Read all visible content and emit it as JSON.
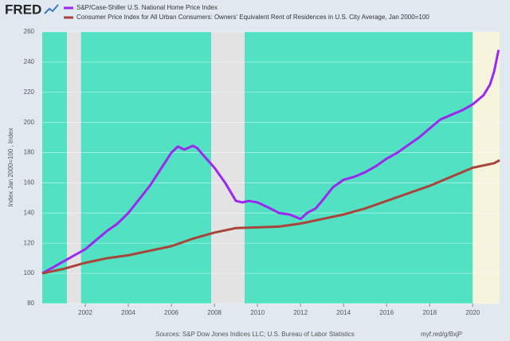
{
  "logo": "FRED",
  "chart_data": {
    "type": "line",
    "y_label": "Index Jan 2000=100 , Index",
    "source": "Sources: S&P Dow Jones Indices LLC; U.S. Bureau of Labor Statistics",
    "url": "myf.red/g/BxjP",
    "xlim": [
      2000,
      2021.25
    ],
    "xticks": [
      2002,
      2004,
      2006,
      2008,
      2010,
      2012,
      2014,
      2016,
      2018,
      2020
    ],
    "ylim": [
      80,
      260
    ],
    "yticks": [
      80,
      100,
      120,
      140,
      160,
      180,
      200,
      220,
      240,
      260
    ],
    "grid": true,
    "shading": [
      {
        "xlim": [
          2000,
          2001.15
        ],
        "color": "#52e2c3"
      },
      {
        "xlim": [
          2001.15,
          2001.8
        ],
        "color": "#e3e3e3"
      },
      {
        "xlim": [
          2001.8,
          2007.85
        ],
        "color": "#52e2c3"
      },
      {
        "xlim": [
          2007.85,
          2009.4
        ],
        "color": "#e3e3e3"
      },
      {
        "xlim": [
          2009.4,
          2020.0
        ],
        "color": "#52e2c3"
      },
      {
        "xlim": [
          2020.0,
          2021.25
        ],
        "color": "#f6f4dc"
      }
    ],
    "series": [
      {
        "name": "S&P/Case-Shiller U.S. National Home Price Index",
        "color": "#9c27ef",
        "x": [
          2000,
          2000.5,
          2001,
          2001.5,
          2002,
          2002.5,
          2003,
          2003.5,
          2004,
          2004.5,
          2005,
          2005.5,
          2006,
          2006.3,
          2006.6,
          2007,
          2007.2,
          2007.5,
          2008,
          2008.5,
          2009,
          2009.3,
          2009.6,
          2010,
          2010.3,
          2010.6,
          2011,
          2011.5,
          2012,
          2012.3,
          2012.7,
          2013,
          2013.5,
          2014,
          2014.5,
          2015,
          2015.5,
          2016,
          2016.5,
          2017,
          2017.5,
          2018,
          2018.5,
          2019,
          2019.5,
          2020,
          2020.5,
          2020.8,
          2021,
          2021.2
        ],
        "values": [
          100,
          104,
          108,
          112,
          116,
          122,
          128,
          133,
          140,
          149,
          158,
          169,
          180,
          184,
          182,
          184.5,
          183,
          178,
          170,
          160,
          148,
          147,
          148,
          147,
          145,
          143,
          140,
          139,
          136,
          140,
          143,
          148,
          157,
          162,
          164,
          167,
          171,
          176,
          180,
          185,
          190,
          196,
          202,
          205,
          208,
          212,
          218,
          225,
          234,
          248
        ]
      },
      {
        "name": "Consumer Price Index for All Urban Consumers: Owners' Equivalent Rent of Residences in U.S. City Average, Jan 2000=100",
        "color": "#a9443a",
        "x": [
          2000,
          2001,
          2002,
          2003,
          2004,
          2005,
          2006,
          2007,
          2008,
          2009,
          2010,
          2011,
          2012,
          2013,
          2014,
          2015,
          2016,
          2017,
          2018,
          2019,
          2020,
          2021,
          2021.25
        ],
        "values": [
          100,
          103,
          107,
          110,
          112,
          115,
          118,
          123,
          127,
          130,
          130.5,
          131,
          133,
          136,
          139,
          143,
          148,
          153,
          158,
          164,
          170,
          173,
          175
        ]
      }
    ]
  }
}
